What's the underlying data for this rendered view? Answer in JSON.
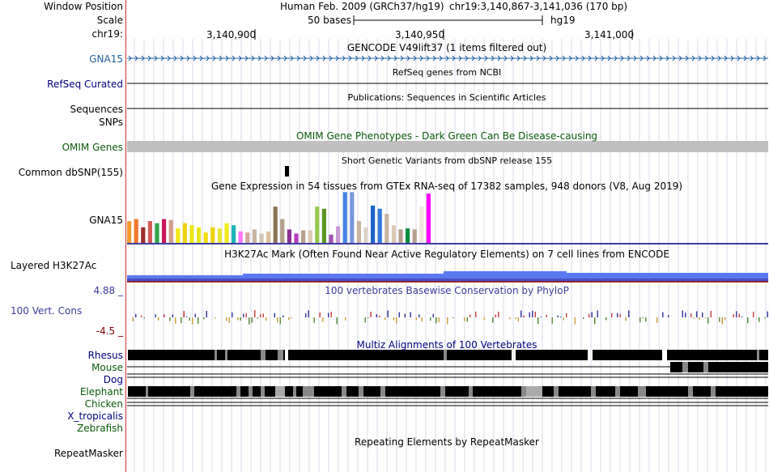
{
  "header": {
    "window_position_label": "Window Position",
    "scale_label": "Scale",
    "chrom_label": "chr19:",
    "assembly_text": "Human Feb. 2009 (GRCh37/hg19)",
    "position_text": "chr19:3,140,867-3,141,036 (170 bp)",
    "scale_text": "50 bases",
    "scale_assembly": "hg19",
    "ruler_ticks": [
      "3,140,900",
      "3,140,950",
      "3,141,000"
    ]
  },
  "colors": {
    "label_blue": "#1f5fa0",
    "label_navy": "#000080",
    "label_green": "#0a5a0a",
    "cons_blue": "#3c3c9c",
    "cons_red": "#800000",
    "grid_line": "#d8d8e8",
    "omim_gray": "#c0c0c0",
    "h3k27ac_blue": "#5a78f0"
  },
  "tracks": {
    "gencode": {
      "title": "GENCODE V49lift37 (1 items filtered out)",
      "label": "GNA15"
    },
    "refseq": {
      "label": "RefSeq Curated",
      "title": "RefSeq genes from NCBI"
    },
    "sequences": {
      "label": "Sequences",
      "title": "Publications: Sequences in Scientific Articles"
    },
    "snps": {
      "label": "SNPs"
    },
    "omim": {
      "title": "OMIM Gene Phenotypes - Dark Green Can Be Disease-causing",
      "label": "OMIM Genes"
    },
    "dbsnp": {
      "title": "Short Genetic Variants from dbSNP release 155",
      "label": "Common dbSNP(155)"
    },
    "gtex": {
      "title": "Gene Expression in 54 tissues from GTEx RNA-seq of 17382 samples, 948 donors (V8, Aug 2019)",
      "label": "GNA15"
    },
    "h3k27ac": {
      "label": "Layered H3K27Ac",
      "title": "H3K27Ac Mark (Often Found Near Active Regulatory Elements) on 7 cell lines from ENCODE"
    },
    "phylop": {
      "max_label": "4.88 _",
      "title": "100 vertebrates Basewise Conservation by PhyloP",
      "label": "100 Vert. Cons",
      "min_label": "-4.5 _"
    },
    "multiz": {
      "title": "Multiz Alignments of 100 Vertebrates",
      "species": [
        "Rhesus",
        "Mouse",
        "Dog",
        "Elephant",
        "Chicken",
        "X_tropicalis",
        "Zebrafish"
      ]
    },
    "repeatmasker": {
      "title": "Repeating Elements by RepeatMasker",
      "label": "RepeatMasker"
    }
  },
  "gtex_colors": [
    "#f59b33",
    "#f0782c",
    "#9d2d2d",
    "#d45a5a",
    "#2fa34b",
    "#c8195c",
    "#d2a08c",
    "#f0e614",
    "#eed20f",
    "#ebe617",
    "#e6e61e",
    "#f2dc14",
    "#ebd211",
    "#e8e837",
    "#f0eb1e",
    "#1eb4b4",
    "#ff78ff",
    "#d4a99c",
    "#c8b4a0",
    "#d2c3b4",
    "#dcbea0",
    "#8b7355",
    "#b4a08c",
    "#8c3296",
    "#b43cbe",
    "#b4a08c",
    "#dcc8b4",
    "#96c850",
    "#5a9628",
    "#a04fb4",
    "#c89bd2",
    "#4682e6",
    "#7896dc",
    "#c8b4a0",
    "#dcd2c8",
    "#1e64c8",
    "#3278dc",
    "#c8b4a0",
    "#dcc8b4",
    "#b4a08c",
    "#008c3c",
    "#b4a08c",
    "#f0e6dc",
    "#ff00ff"
  ],
  "gtex_values": [
    0.42,
    0.46,
    0.3,
    0.42,
    0.38,
    0.46,
    0.44,
    0.28,
    0.38,
    0.34,
    0.3,
    0.2,
    0.3,
    0.28,
    0.38,
    0.34,
    0.22,
    0.2,
    0.26,
    0.18,
    0.22,
    0.7,
    0.46,
    0.26,
    0.18,
    0.24,
    0.24,
    0.7,
    0.66,
    0.16,
    0.32,
    0.98,
    0.98,
    0.42,
    0.3,
    0.72,
    0.66,
    0.56,
    0.34,
    0.26,
    0.28,
    0.26,
    0.7,
    0.95
  ]
}
